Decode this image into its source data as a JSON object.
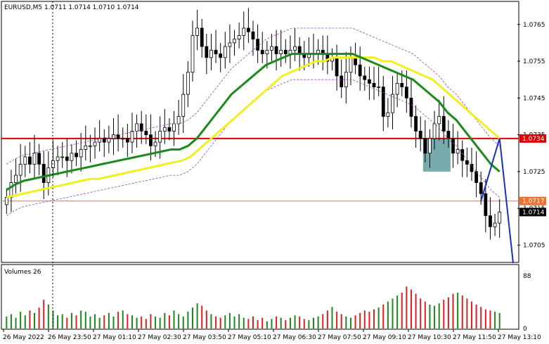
{
  "chart_data": {
    "type": "candlestick",
    "header": "EURUSD,M5  1.0711 1.0714 1.0710 1.0714",
    "symbol": "EURUSD,M5",
    "ohlc_last": [
      1.0711,
      1.0714,
      1.071,
      1.0714
    ],
    "price_axis": {
      "range": [
        1.07005,
        1.07705
      ],
      "ticks": [
        "1.0765",
        "1.0755",
        "1.0745",
        "1.0735",
        "1.0725",
        "1.0715",
        "1.0705"
      ]
    },
    "time_labels": [
      "26 May 2022",
      "26 May 23:50",
      "27 May 01:10",
      "27 May 02:30",
      "27 May 03:50",
      "27 May 05:10",
      "27 May 06:30",
      "27 May 07:50",
      "27 May 09:10",
      "27 May 10:30",
      "27 May 11:50",
      "27 May 13:10"
    ],
    "levels": [
      {
        "price": 1.0734,
        "label": "1.0734",
        "color": "#e00000"
      },
      {
        "price": 1.0717,
        "label": "1.0717",
        "color": "#f07030"
      }
    ],
    "current_price": {
      "price": 1.0714,
      "label": "1.0714"
    },
    "ma_fast": [
      1.072,
      1.07215,
      1.07225,
      1.0723,
      1.07235,
      1.0724,
      1.07245,
      1.0725,
      1.07255,
      1.0726,
      1.07265,
      1.0727,
      1.07275,
      1.0728,
      1.07285,
      1.0729,
      1.07295,
      1.073,
      1.07305,
      1.0731,
      1.0731,
      1.0732,
      1.0734,
      1.0737,
      1.074,
      1.0743,
      1.0746,
      1.0748,
      1.075,
      1.0752,
      1.0754,
      1.0755,
      1.0756,
      1.0757,
      1.0757,
      1.0757,
      1.0757,
      1.0757,
      1.0757,
      1.0757,
      1.0757,
      1.0756,
      1.0755,
      1.0754,
      1.0753,
      1.0752,
      1.0751,
      1.075,
      1.0748,
      1.0746,
      1.0744,
      1.0741,
      1.0739,
      1.0736,
      1.0733,
      1.073,
      1.0727,
      1.0725
    ],
    "ma_slow": [
      1.0718,
      1.07185,
      1.0719,
      1.07195,
      1.072,
      1.07205,
      1.0721,
      1.07215,
      1.0722,
      1.07225,
      1.0723,
      1.0723,
      1.07235,
      1.0724,
      1.07245,
      1.0725,
      1.07255,
      1.0726,
      1.07265,
      1.0727,
      1.07275,
      1.0728,
      1.0729,
      1.0731,
      1.0733,
      1.0735,
      1.0737,
      1.0739,
      1.0741,
      1.0743,
      1.0745,
      1.0747,
      1.0749,
      1.0751,
      1.0752,
      1.0753,
      1.0754,
      1.0755,
      1.0755,
      1.0756,
      1.0756,
      1.0756,
      1.0756,
      1.0756,
      1.0756,
      1.0755,
      1.0755,
      1.0754,
      1.0753,
      1.0752,
      1.0751,
      1.075,
      1.0748,
      1.0746,
      1.0744,
      1.0742,
      1.074,
      1.0738,
      1.0736,
      1.0734
    ],
    "closes": [
      1.0718,
      1.0722,
      1.0724,
      1.0727,
      1.0729,
      1.0727,
      1.073,
      1.0727,
      1.0722,
      1.0726,
      1.0728,
      1.0729,
      1.0729,
      1.0728,
      1.073,
      1.0729,
      1.0731,
      1.0732,
      1.0732,
      1.0733,
      1.0734,
      1.0733,
      1.0734,
      1.0735,
      1.0734,
      1.0734,
      1.0733,
      1.0736,
      1.0738,
      1.0736,
      1.0735,
      1.0732,
      1.0733,
      1.0736,
      1.0737,
      1.0736,
      1.0738,
      1.074,
      1.0746,
      1.0752,
      1.0762,
      1.0764,
      1.0759,
      1.0756,
      1.0758,
      1.0757,
      1.0756,
      1.0759,
      1.076,
      1.0761,
      1.0762,
      1.0764,
      1.0763,
      1.0761,
      1.0758,
      1.0757,
      1.0758,
      1.0759,
      1.0757,
      1.0758,
      1.0757,
      1.0758,
      1.0759,
      1.0757,
      1.0756,
      1.0757,
      1.0757,
      1.0758,
      1.0757,
      1.0755,
      1.0756,
      1.0751,
      1.0748,
      1.0752,
      1.0756,
      1.0754,
      1.0751,
      1.075,
      1.0749,
      1.0748,
      1.0748,
      1.074,
      1.0741,
      1.0746,
      1.0749,
      1.0748,
      1.0745,
      1.074,
      1.0736,
      1.0734,
      1.073,
      1.0734,
      1.0738,
      1.074,
      1.0736,
      1.0734,
      1.073,
      1.0731,
      1.0728,
      1.0727,
      1.0725,
      1.0722,
      1.0719,
      1.0713,
      1.071,
      1.0711,
      1.0714
    ],
    "volume_axis": {
      "label": "Volumes 26",
      "max": 88,
      "min": 0,
      "ticks": [
        "88",
        "0"
      ]
    },
    "volumes": [
      20,
      24,
      18,
      28,
      22,
      30,
      26,
      35,
      48,
      40,
      30,
      22,
      24,
      18,
      26,
      22,
      30,
      28,
      20,
      24,
      18,
      22,
      26,
      20,
      28,
      30,
      24,
      22,
      18,
      20,
      16,
      24,
      20,
      18,
      26,
      22,
      30,
      24,
      20,
      28,
      35,
      42,
      38,
      30,
      24,
      20,
      18,
      22,
      26,
      20,
      24,
      18,
      16,
      20,
      14,
      18,
      12,
      16,
      20,
      18,
      14,
      18,
      22,
      20,
      16,
      14,
      18,
      20,
      24,
      30,
      36,
      28,
      24,
      20,
      18,
      22,
      26,
      30,
      28,
      32,
      35,
      40,
      45,
      50,
      55,
      60,
      70,
      65,
      58,
      50,
      45,
      40,
      38,
      42,
      48,
      52,
      58,
      60,
      55,
      50,
      45,
      40,
      36,
      32,
      30,
      28,
      26
    ],
    "zone_label": "",
    "annotations": []
  },
  "colors": {
    "bull": "#000000",
    "bear": "#000000",
    "ma_fast": "#1a8a1a",
    "ma_slow": "#f0f020",
    "envelope": "#a040c0",
    "projection": "#1a2fc0",
    "zone": "#5f9ea0",
    "vol_up": "#1a8a1a",
    "vol_down": "#e02020"
  }
}
